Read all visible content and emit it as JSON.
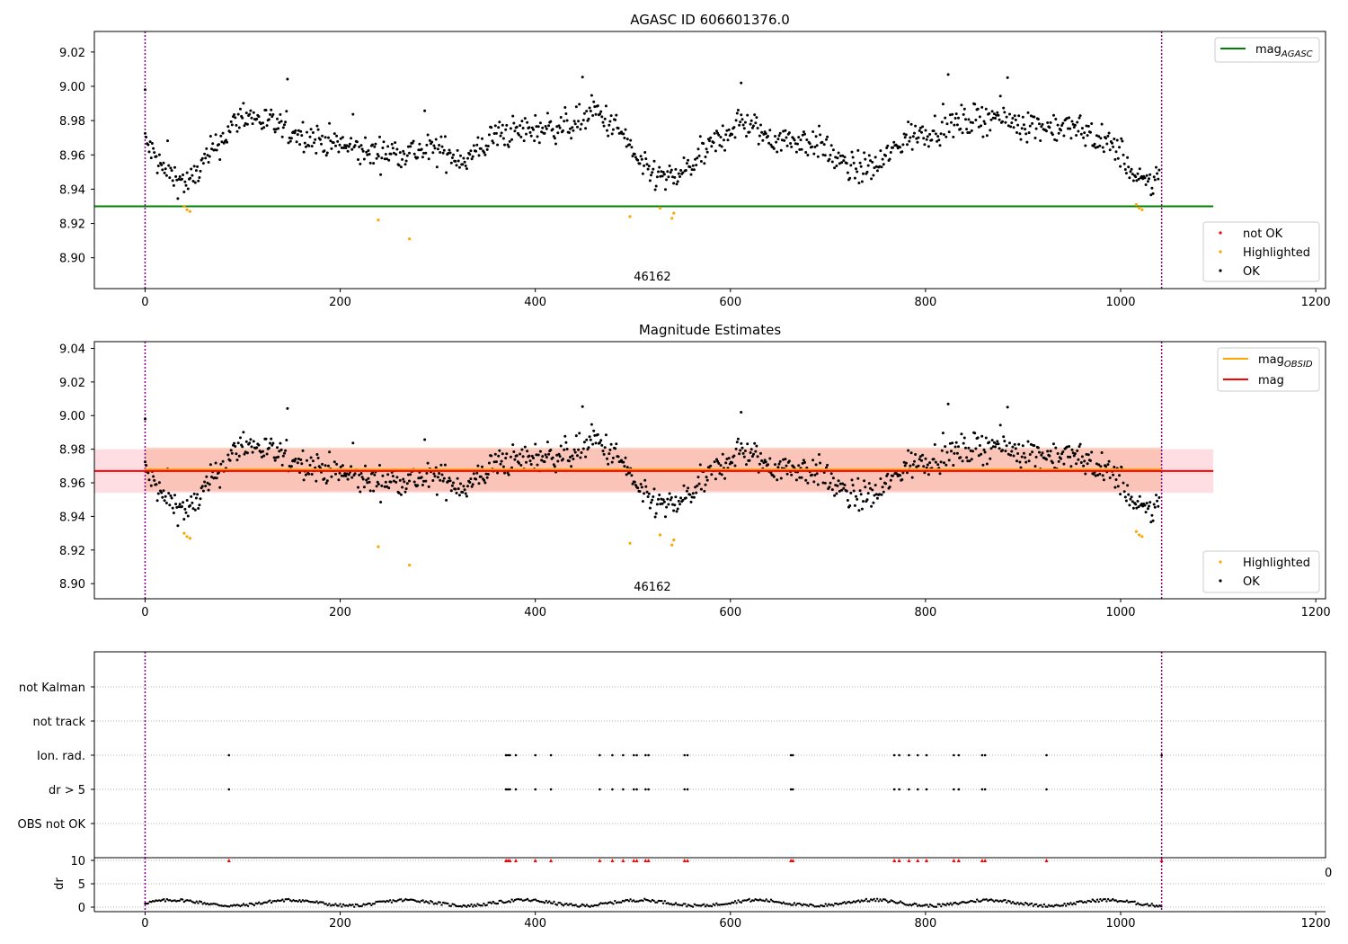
{
  "chart_data": [
    {
      "type": "scatter",
      "title": "AGASC ID 606601376.0",
      "xlim": [
        -52,
        1210
      ],
      "ylim": [
        8.882,
        9.032
      ],
      "xticks": [
        0,
        200,
        400,
        600,
        800,
        1000,
        1200
      ],
      "yticks": [
        8.9,
        8.92,
        8.94,
        8.96,
        8.98,
        9.0,
        9.02
      ],
      "ytick_labels": [
        "8.90",
        "8.92",
        "8.94",
        "8.96",
        "8.98",
        "9.00",
        "9.02"
      ],
      "obsid_label": {
        "text": "46162",
        "x": 520
      },
      "vlines": [
        0,
        1042
      ],
      "mag_agasc": {
        "name": "mag_AGASC",
        "label_main": "mag",
        "label_sub": "AGASC",
        "y": 8.93,
        "x_range": [
          -52,
          1095
        ],
        "color": "#008000"
      },
      "series": [
        {
          "name": "not OK",
          "color": "#ff0000",
          "x": [],
          "y": []
        },
        {
          "name": "Highlighted",
          "color": "#ffa500",
          "x": [
            40,
            43,
            46,
            239,
            271,
            497,
            528,
            540,
            542,
            1016,
            1019,
            1022
          ],
          "y": [
            8.93,
            8.928,
            8.927,
            8.922,
            8.911,
            8.924,
            8.929,
            8.923,
            8.926,
            8.931,
            8.929,
            8.928
          ]
        },
        {
          "name": "OK",
          "color": "#000000",
          "generated": "dense"
        }
      ],
      "legend_lines_pos": "top-right",
      "legend_points_pos": "lower-right"
    },
    {
      "type": "scatter",
      "title": "Magnitude Estimates",
      "xlim": [
        -52,
        1210
      ],
      "ylim": [
        8.891,
        9.044
      ],
      "xticks": [
        0,
        200,
        400,
        600,
        800,
        1000,
        1200
      ],
      "yticks": [
        8.9,
        8.92,
        8.94,
        8.96,
        8.98,
        9.0,
        9.02,
        9.04
      ],
      "ytick_labels": [
        "8.90",
        "8.92",
        "8.94",
        "8.96",
        "8.98",
        "9.00",
        "9.02",
        "9.04"
      ],
      "obsid_label": {
        "text": "46162",
        "x": 520
      },
      "vlines": [
        0,
        1042
      ],
      "mag_obsid": {
        "label_main": "mag",
        "label_sub": "OBSID",
        "y": 8.968,
        "x_range": [
          0,
          1042
        ],
        "color": "#ffa500",
        "band": [
          8.955,
          8.981
        ],
        "band_color": "#f4a582"
      },
      "mag": {
        "name": "mag",
        "y": 8.967,
        "x_range": [
          -52,
          1095
        ],
        "color": "#ff0000",
        "band": [
          8.954,
          8.98
        ],
        "band_color": "#ffb6c1"
      },
      "series": [
        {
          "name": "Highlighted",
          "color": "#ffa500"
        },
        {
          "name": "OK",
          "color": "#000000"
        }
      ],
      "legend_lines_pos": "top-right",
      "legend_points_pos": "lower-right"
    },
    {
      "type": "scatter",
      "title": "",
      "flag_rows": [
        "not Kalman",
        "not track",
        "Ion. rad.",
        "dr > 5",
        "OBS not OK"
      ],
      "flag_points": {
        "Ion. rad.": [
          86,
          370,
          372,
          374,
          380,
          400,
          416,
          466,
          479,
          490,
          501,
          504,
          513,
          516,
          553,
          556,
          662,
          664,
          768,
          773,
          783,
          792,
          801,
          829,
          834,
          858,
          861,
          924,
          1042
        ],
        "dr > 5": [
          86,
          370,
          372,
          374,
          380,
          400,
          416,
          466,
          479,
          490,
          501,
          504,
          513,
          516,
          553,
          556,
          662,
          664,
          768,
          773,
          783,
          792,
          801,
          829,
          834,
          858,
          861,
          924,
          1042
        ]
      },
      "dr_panel": {
        "ylabel": "dr",
        "ylim": [
          -0.5,
          11
        ],
        "yticks": [
          0,
          5,
          10
        ],
        "ytick_labels": [
          "0",
          "5",
          "10"
        ],
        "clipped_value": 10,
        "clipped_x": [
          86,
          370,
          372,
          374,
          380,
          400,
          416,
          466,
          479,
          490,
          501,
          504,
          513,
          516,
          553,
          556,
          662,
          664,
          768,
          773,
          783,
          792,
          801,
          829,
          834,
          858,
          861,
          924,
          1042
        ]
      },
      "xlim": [
        -52,
        1210
      ],
      "xticks": [
        0,
        200,
        400,
        600,
        800,
        1000,
        1200
      ],
      "stray_tick_label": "0",
      "vlines": [
        0,
        1042
      ]
    }
  ],
  "colors": {
    "ok": "#000000",
    "highlighted": "#ffa500",
    "not_ok": "#ff0000",
    "vline": "#800080",
    "grid": "#b0b0b0"
  }
}
